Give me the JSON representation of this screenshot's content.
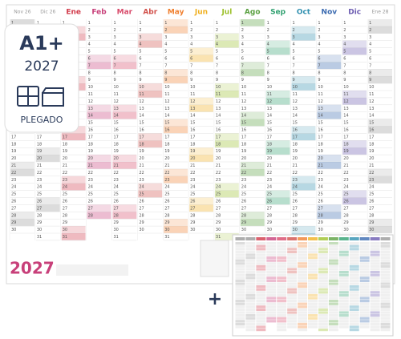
{
  "badge": {
    "size": "A1+",
    "year": "2027",
    "fold": "PLEGADO"
  },
  "months": [
    {
      "name": "Nov 26",
      "color": "#9a9a9a"
    },
    {
      "name": "Dic 26",
      "color": "#9a9a9a"
    },
    {
      "name": "Ene",
      "color": "#d13a4a"
    },
    {
      "name": "Feb",
      "color": "#c8407a"
    },
    {
      "name": "Mar",
      "color": "#d84a6a"
    },
    {
      "name": "Abr",
      "color": "#d2504a"
    },
    {
      "name": "May",
      "color": "#f08030"
    },
    {
      "name": "Jun",
      "color": "#f0b020"
    },
    {
      "name": "Jul",
      "color": "#9cc02a"
    },
    {
      "name": "Ago",
      "color": "#5aa040"
    },
    {
      "name": "Sep",
      "color": "#30a070"
    },
    {
      "name": "Oct",
      "color": "#3090b0"
    },
    {
      "name": "Nov",
      "color": "#3a6ab0"
    },
    {
      "name": "Dic",
      "color": "#6a5ab0"
    },
    {
      "name": "Ene 28",
      "color": "#9a9a9a"
    }
  ],
  "days": [
    1,
    2,
    3,
    4,
    5,
    6,
    7,
    8,
    9,
    10,
    11,
    12,
    13,
    14,
    15,
    16,
    17,
    18,
    19,
    20,
    21,
    22,
    23,
    24,
    25,
    26,
    27,
    28,
    29,
    30,
    31
  ],
  "footer": {
    "year": "2027"
  },
  "plus": "+"
}
